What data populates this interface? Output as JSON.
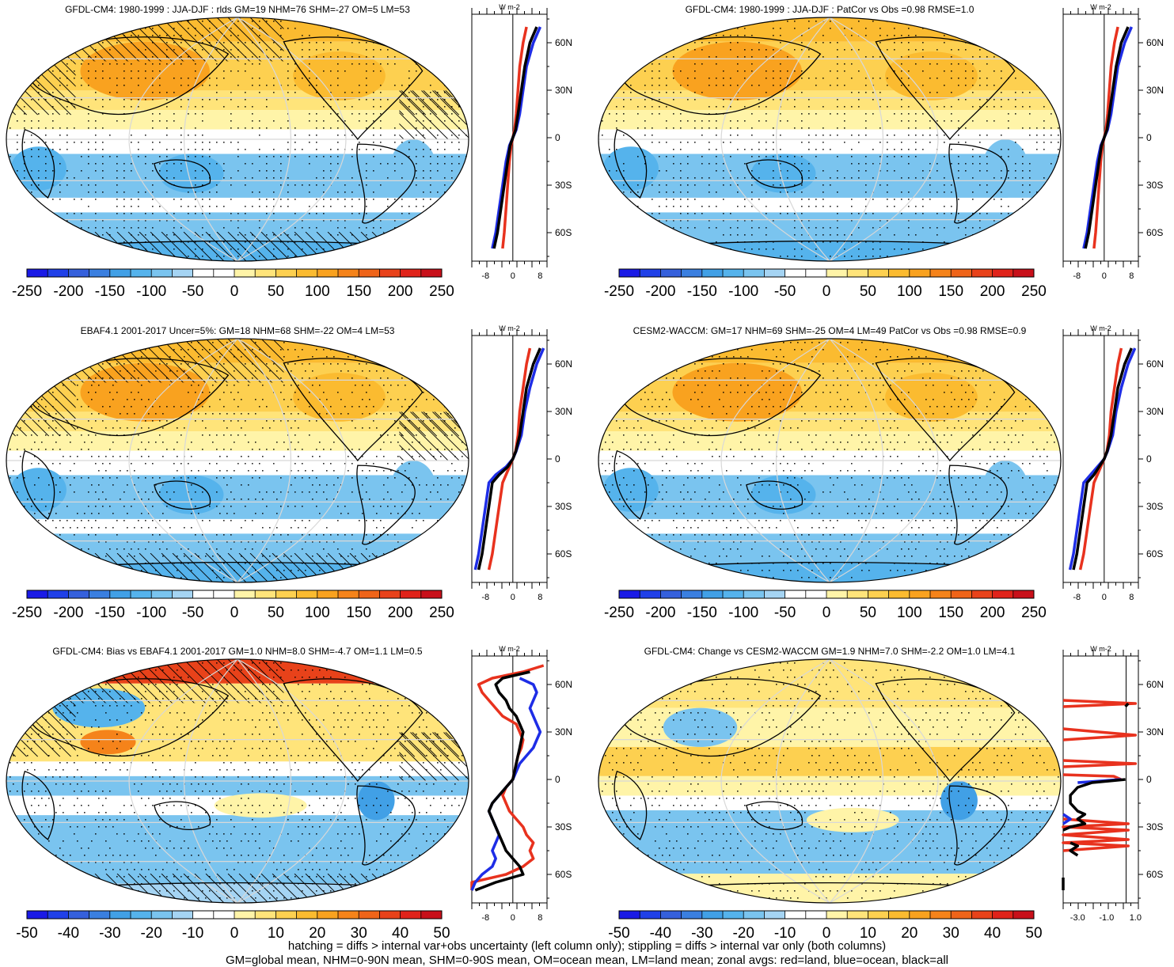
{
  "panels": [
    {
      "title": "GFDL-CM4: 1980-1999 : JJA-DJF : rlds GM=19 NHM=76 SHM=-27 OM=5 LM=53",
      "kind": "clim",
      "hatch": true,
      "colorbar_ticks": [
        "-250",
        "-200",
        "-150",
        "-100",
        "-50",
        "0",
        "50",
        "100",
        "150",
        "200",
        "250"
      ],
      "zonal_ticks": [
        "-8",
        "0",
        "8"
      ],
      "zonal_xlim": [
        -12,
        10
      ]
    },
    {
      "title": "GFDL-CM4: 1980-1999 : JJA-DJF : PatCor vs Obs =0.98 RMSE=1.0",
      "kind": "clim",
      "hatch": false,
      "colorbar_ticks": [
        "-250",
        "-200",
        "-150",
        "-100",
        "-50",
        "0",
        "50",
        "100",
        "150",
        "200",
        "250"
      ],
      "zonal_ticks": [
        "-8",
        "0",
        "8"
      ],
      "zonal_xlim": [
        -12,
        10
      ]
    },
    {
      "title": "EBAF4.1 2001-2017 Uncer=5%: GM=18 NHM=68 SHM=-22 OM=4 LM=53",
      "kind": "clim",
      "hatch": true,
      "colorbar_ticks": [
        "-250",
        "-200",
        "-150",
        "-100",
        "-50",
        "0",
        "50",
        "100",
        "150",
        "200",
        "250"
      ],
      "zonal_ticks": [
        "-8",
        "0",
        "8"
      ],
      "zonal_xlim": [
        -12,
        10
      ]
    },
    {
      "title": "CESM2-WACCM: GM=17 NHM=69 SHM=-25 OM=4 LM=49 PatCor vs Obs =0.98 RMSE=0.9",
      "kind": "clim",
      "hatch": false,
      "colorbar_ticks": [
        "-250",
        "-200",
        "-150",
        "-100",
        "-50",
        "0",
        "50",
        "100",
        "150",
        "200",
        "250"
      ],
      "zonal_ticks": [
        "-8",
        "0",
        "8"
      ],
      "zonal_xlim": [
        -12,
        10
      ]
    },
    {
      "title": "GFDL-CM4: Bias vs EBAF4.1 2001-2017 GM=1.0 NHM=8.0 SHM=-4.7 OM=1.1 LM=0.5",
      "kind": "bias",
      "hatch": true,
      "colorbar_ticks": [
        "-50",
        "-40",
        "-30",
        "-20",
        "-10",
        "0",
        "10",
        "20",
        "30",
        "40",
        "50"
      ],
      "zonal_ticks": [
        "-8",
        "0",
        "8"
      ],
      "zonal_xlim": [
        -12,
        10
      ]
    },
    {
      "title": "GFDL-CM4: Change vs CESM2-WACCM GM=1.9 NHM=7.0 SHM=-2.2 OM=1.0 LM=4.1",
      "kind": "change",
      "hatch": false,
      "colorbar_ticks": [
        "-50",
        "-40",
        "-30",
        "-20",
        "-10",
        "0",
        "10",
        "20",
        "30",
        "40",
        "50"
      ],
      "zonal_ticks": [
        "-3.0",
        "-1.0",
        "1.0"
      ],
      "zonal_xlim": [
        -4,
        1.2
      ]
    }
  ],
  "zonal_unit": "W m-2",
  "lat_ticks": [
    "60N",
    "30N",
    "0",
    "30S",
    "60S"
  ],
  "colors": {
    "palette": [
      "#1a1ae6",
      "#2040e8",
      "#3560dc",
      "#3a7fe0",
      "#41a0e6",
      "#55b3ec",
      "#7ac4ef",
      "#a5d4f3",
      "#ffffff",
      "#ffffff",
      "#fff4a8",
      "#ffe47a",
      "#fdd050",
      "#fbbb30",
      "#f9a21f",
      "#f5831a",
      "#ef6419",
      "#e8421a",
      "#e0231a",
      "#c8101a"
    ],
    "land": "#e8321e",
    "ocean": "#1e2de6",
    "all": "#000000"
  },
  "chart_data": [
    {
      "type": "heatmap",
      "title": "GFDL-CM4: 1980-1999 : JJA-DJF : rlds GM=19 NHM=76 SHM=-27 OM=5 LM=53",
      "colorbar": {
        "ticks": [
          -250,
          -200,
          -150,
          -100,
          -50,
          0,
          50,
          100,
          150,
          200,
          250
        ]
      },
      "zonal": {
        "unit": "W m-2",
        "lat": [
          70,
          60,
          45,
          30,
          15,
          5,
          0,
          -5,
          -15,
          -30,
          -45,
          -60,
          -70
        ],
        "land": [
          4,
          3,
          2,
          1.5,
          1,
          0.5,
          0,
          -0.5,
          -1,
          -1.5,
          -2,
          -2.5,
          -3
        ],
        "ocean": [
          8,
          6,
          4,
          3,
          2,
          1,
          0,
          -1,
          -2,
          -3,
          -4,
          -5,
          -6
        ],
        "all": [
          7,
          5,
          3.5,
          2.5,
          1.5,
          0.8,
          0,
          -0.8,
          -1.5,
          -2.5,
          -3.5,
          -4.5,
          -5.5
        ]
      }
    },
    {
      "type": "heatmap",
      "title": "GFDL-CM4: 1980-1999 : JJA-DJF : PatCor vs Obs =0.98 RMSE=1.0",
      "colorbar": {
        "ticks": [
          -250,
          -200,
          -150,
          -100,
          -50,
          0,
          50,
          100,
          150,
          200,
          250
        ]
      },
      "zonal": {
        "unit": "W m-2",
        "lat": [
          70,
          60,
          45,
          30,
          15,
          5,
          0,
          -5,
          -15,
          -30,
          -45,
          -60,
          -70
        ],
        "land": [
          4,
          3,
          2,
          1.5,
          1,
          0.5,
          0,
          -0.5,
          -1,
          -1.5,
          -2,
          -2.5,
          -3
        ],
        "ocean": [
          8,
          6,
          4,
          3,
          2,
          1,
          0,
          -1,
          -2,
          -3,
          -4,
          -5,
          -6
        ],
        "all": [
          7,
          5,
          3.5,
          2.5,
          1.5,
          0.8,
          0,
          -0.8,
          -1.5,
          -2.5,
          -3.5,
          -4.5,
          -5.5
        ]
      }
    },
    {
      "type": "heatmap",
      "title": "EBAF4.1 2001-2017 Uncer=5%: GM=18 NHM=68 SHM=-22 OM=4 LM=53",
      "colorbar": {
        "ticks": [
          -250,
          -200,
          -150,
          -100,
          -50,
          0,
          50,
          100,
          150,
          200,
          250
        ]
      },
      "zonal": {
        "unit": "W m-2",
        "lat": [
          70,
          60,
          45,
          30,
          15,
          5,
          0,
          -5,
          -10,
          -15,
          -30,
          -45,
          -60,
          -70
        ],
        "land": [
          5,
          4,
          3,
          2,
          1.5,
          0.8,
          0,
          -1,
          -2,
          -3,
          -4,
          -5,
          -6,
          -7
        ],
        "ocean": [
          9,
          7,
          5,
          3.5,
          2.5,
          1,
          0,
          -2,
          -5,
          -7,
          -8,
          -9,
          -10,
          -11
        ],
        "all": [
          8,
          6,
          4,
          3,
          2,
          0.9,
          0,
          -1.5,
          -4,
          -6,
          -7,
          -8,
          -9,
          -10
        ]
      }
    },
    {
      "type": "heatmap",
      "title": "CESM2-WACCM: GM=17 NHM=69 SHM=-25 OM=4 LM=49 PatCor vs Obs =0.98 RMSE=0.9",
      "colorbar": {
        "ticks": [
          -250,
          -200,
          -150,
          -100,
          -50,
          0,
          50,
          100,
          150,
          200,
          250
        ]
      },
      "zonal": {
        "unit": "W m-2",
        "lat": [
          70,
          60,
          45,
          30,
          15,
          5,
          0,
          -5,
          -10,
          -15,
          -30,
          -45,
          -60,
          -70
        ],
        "land": [
          5,
          4,
          3,
          2,
          1.5,
          0.8,
          0,
          -1,
          -2,
          -3,
          -4,
          -5,
          -6,
          -7
        ],
        "ocean": [
          9,
          7,
          5,
          3.5,
          2.5,
          1,
          0,
          -2,
          -4,
          -6,
          -7,
          -8,
          -9,
          -10
        ],
        "all": [
          8,
          6,
          4,
          3,
          2,
          0.9,
          0,
          -1.5,
          -3,
          -5,
          -6,
          -7,
          -8,
          -9
        ]
      }
    },
    {
      "type": "heatmap",
      "title": "GFDL-CM4: Bias vs EBAF4.1 2001-2017 GM=1.0 NHM=8.0 SHM=-4.7 OM=1.1 LM=0.5",
      "colorbar": {
        "ticks": [
          -50,
          -40,
          -30,
          -20,
          -10,
          0,
          10,
          20,
          30,
          40,
          50
        ]
      },
      "zonal": {
        "unit": "W m-2",
        "lat": [
          72,
          68,
          64,
          60,
          55,
          50,
          45,
          40,
          35,
          30,
          25,
          20,
          15,
          10,
          5,
          0,
          -5,
          -10,
          -15,
          -20,
          -25,
          -30,
          -35,
          -40,
          -45,
          -50,
          -55,
          -60,
          -65,
          -70
        ],
        "land": [
          9,
          3,
          -6,
          -10,
          -9,
          -7,
          -5,
          -3,
          1,
          2,
          3,
          2.5,
          1.5,
          1,
          0.5,
          0,
          -2,
          -3,
          -2,
          -1,
          1,
          3,
          4,
          6,
          5,
          6,
          3,
          -2,
          -12,
          -12
        ],
        "ocean": [
          null,
          null,
          2,
          6,
          7,
          6,
          5,
          6,
          7,
          8,
          7,
          6,
          4,
          2,
          1,
          0,
          -2,
          -4,
          -6,
          -7,
          -6,
          -5,
          -4,
          -5,
          -6,
          -5,
          -6,
          -9,
          -11,
          -12
        ],
        "all": [
          null,
          5,
          -3,
          -5,
          -4,
          -2,
          -1,
          1,
          2,
          3,
          2.5,
          2,
          1.5,
          1,
          0.5,
          0,
          -2,
          -4,
          -6,
          -7,
          -6,
          -5,
          -4,
          -3,
          -2,
          0,
          2,
          3,
          -5,
          -11
        ]
      }
    },
    {
      "type": "heatmap",
      "title": "GFDL-CM4: Change vs CESM2-WACCM GM=1.9 NHM=7.0 SHM=-2.2 OM=1.0 LM=4.1",
      "colorbar": {
        "ticks": [
          -50,
          -40,
          -30,
          -20,
          -10,
          0,
          10,
          20,
          30,
          40,
          50
        ]
      },
      "zonal": {
        "unit": "W m-2",
        "lat": [
          50,
          48,
          46,
          44,
          42,
          40,
          35,
          32,
          28,
          25,
          20,
          15,
          12,
          10,
          8,
          5,
          3,
          2,
          0,
          -2,
          -5,
          -10,
          -15,
          -20,
          -22,
          -25,
          -28,
          -30,
          -32,
          -35,
          -38,
          -40,
          -42,
          -45,
          -48,
          -50,
          -55,
          -60,
          -62,
          -70
        ],
        "land": [
          -4,
          1,
          -4,
          null,
          null,
          null,
          null,
          -4,
          1,
          -4,
          null,
          null,
          -4,
          1,
          -4,
          null,
          -4,
          -0.5,
          0,
          null,
          null,
          null,
          null,
          null,
          null,
          -4,
          0.5,
          -4,
          0.5,
          -4,
          0.5,
          -4,
          0.5,
          -4,
          null,
          null,
          null,
          null,
          null,
          null
        ],
        "ocean": [
          null,
          null,
          null,
          null,
          null,
          null,
          null,
          null,
          null,
          null,
          null,
          null,
          null,
          null,
          null,
          null,
          null,
          null,
          0,
          -3,
          null,
          null,
          null,
          null,
          -4,
          -3.5,
          -4,
          null,
          null,
          null,
          null,
          null,
          null,
          null,
          null,
          null,
          null,
          null,
          null,
          -4
        ],
        "all": [
          null,
          0.5,
          0.3,
          null,
          null,
          null,
          null,
          null,
          null,
          null,
          null,
          null,
          null,
          null,
          null,
          null,
          null,
          null,
          0.3,
          -2,
          -3,
          -3.5,
          -3.5,
          -3,
          -2.5,
          -3,
          -2.5,
          -3.5,
          -4,
          null,
          null,
          -3.5,
          -3,
          -3.5,
          -3,
          null,
          null,
          null,
          -4,
          -4
        ]
      }
    }
  ],
  "footer": {
    "line1": "hatching = diffs > internal var+obs uncertainty (left column only); stippling = diffs > internal var only (both columns)",
    "line2": "GM=global mean, NHM=0-90N mean, SHM=0-90S mean, OM=ocean mean, LM=land mean; zonal avgs: red=land, blue=ocean, black=all"
  }
}
